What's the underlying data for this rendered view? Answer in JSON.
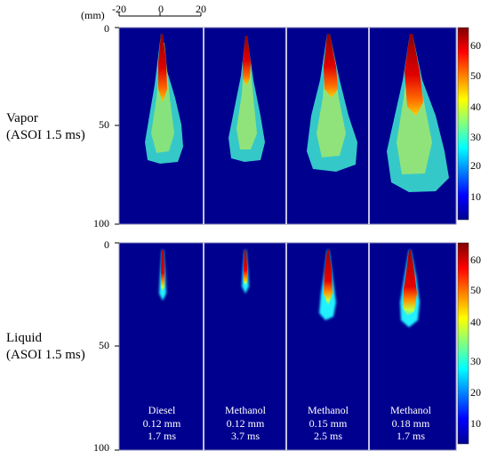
{
  "colors": {
    "background": "#00008f",
    "panel_border": "#8a8ab8",
    "divider": "#ffffff"
  },
  "rows": [
    {
      "name": "Vapor",
      "line1": "Vapor",
      "line2": "(ASOI 1.5 ms)"
    },
    {
      "name": "Liquid",
      "line1": "Liquid",
      "line2": "(ASOI 1.5 ms)"
    }
  ],
  "x_axis": {
    "unit": "(mm)",
    "ticks": [
      "-20",
      "0",
      "20"
    ]
  },
  "y_axis_vapor": {
    "ticks": [
      "0",
      "50",
      "100"
    ]
  },
  "y_axis_liquid": {
    "ticks": [
      "0",
      "50",
      "100"
    ]
  },
  "colorbar": {
    "ticks": [
      "10",
      "20",
      "30",
      "40",
      "50",
      "60"
    ],
    "stops": [
      "#00008f",
      "#0000ff",
      "#0080ff",
      "#00ffff",
      "#80ff80",
      "#ffff00",
      "#ff8000",
      "#ff0000",
      "#800000"
    ]
  },
  "cases": [
    {
      "fuel": "Diesel",
      "diameter": "0.12 mm",
      "duration": "1.7 ms"
    },
    {
      "fuel": "Methanol",
      "diameter": "0.12 mm",
      "duration": "3.7 ms"
    },
    {
      "fuel": "Methanol",
      "diameter": "0.15 mm",
      "duration": "2.5 ms"
    },
    {
      "fuel": "Methanol",
      "diameter": "0.18 mm",
      "duration": "1.7 ms"
    }
  ]
}
